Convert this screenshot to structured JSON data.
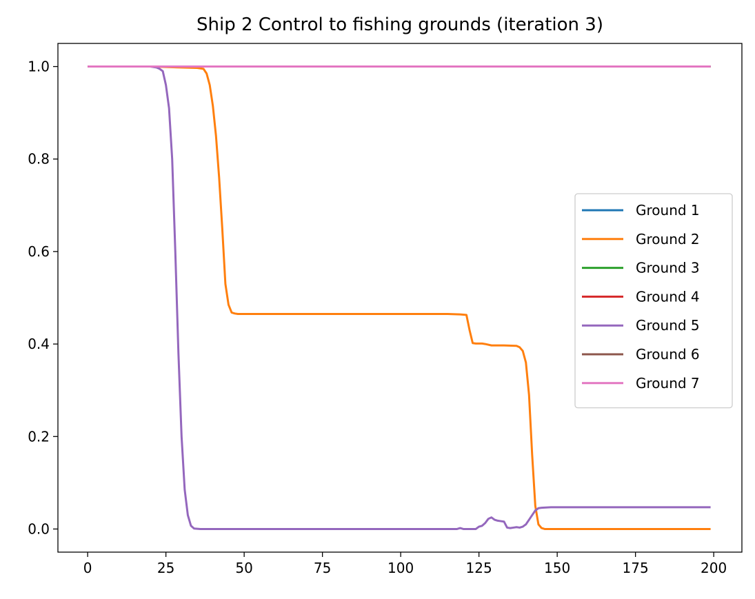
{
  "chart_data": {
    "type": "line",
    "title": "Ship 2 Control to fishing grounds (iteration 3)",
    "xlabel": "",
    "ylabel": "",
    "xlim": [
      -9.5,
      209
    ],
    "ylim": [
      -0.05,
      1.05
    ],
    "xticks": [
      0,
      25,
      50,
      75,
      100,
      125,
      150,
      175,
      200
    ],
    "xtick_labels": [
      "0",
      "25",
      "50",
      "75",
      "100",
      "125",
      "150",
      "175",
      "200"
    ],
    "yticks": [
      0.0,
      0.2,
      0.4,
      0.6,
      0.8,
      1.0
    ],
    "ytick_labels": [
      "0.0",
      "0.2",
      "0.4",
      "0.6",
      "0.8",
      "1.0"
    ],
    "grid": false,
    "legend_position": "center-right",
    "series": [
      {
        "name": "Ground 1",
        "color": "#1f77b4",
        "x": [
          0,
          199
        ],
        "y": [
          1.0,
          1.0
        ]
      },
      {
        "name": "Ground 2",
        "color": "#ff7f0e",
        "x": [
          0,
          20,
          30,
          35,
          37,
          38,
          39,
          40,
          41,
          42,
          43,
          44,
          45,
          46,
          47,
          48,
          49,
          50,
          60,
          80,
          100,
          115,
          119,
          121,
          122,
          123,
          124,
          126,
          127,
          129,
          131,
          133,
          137,
          138,
          139,
          140,
          141,
          142,
          143,
          144,
          145,
          146,
          147,
          150,
          170,
          199
        ],
        "y": [
          1.0,
          1.0,
          0.998,
          0.997,
          0.995,
          0.985,
          0.96,
          0.915,
          0.85,
          0.76,
          0.65,
          0.53,
          0.485,
          0.468,
          0.466,
          0.465,
          0.465,
          0.465,
          0.465,
          0.465,
          0.465,
          0.465,
          0.464,
          0.463,
          0.43,
          0.402,
          0.401,
          0.401,
          0.4,
          0.397,
          0.397,
          0.397,
          0.396,
          0.393,
          0.385,
          0.36,
          0.29,
          0.16,
          0.05,
          0.01,
          0.002,
          0.0,
          0.0,
          0.0,
          0.0,
          0.0
        ]
      },
      {
        "name": "Ground 3",
        "color": "#2ca02c",
        "x": [
          0,
          199
        ],
        "y": [
          1.0,
          1.0
        ]
      },
      {
        "name": "Ground 4",
        "color": "#d62728",
        "x": [
          0,
          199
        ],
        "y": [
          1.0,
          1.0
        ]
      },
      {
        "name": "Ground 5",
        "color": "#9467bd",
        "x": [
          0,
          15,
          20,
          22,
          23,
          24,
          25,
          26,
          27,
          28,
          29,
          30,
          31,
          32,
          33,
          34,
          36,
          50,
          80,
          110,
          117,
          118,
          119,
          120,
          121,
          122,
          123,
          124,
          125,
          126,
          127,
          128,
          129,
          130,
          131,
          132,
          133,
          134,
          135,
          136,
          137,
          138,
          139,
          140,
          141,
          142,
          143,
          144,
          145,
          148,
          160,
          199
        ],
        "y": [
          1.0,
          1.0,
          1.0,
          0.998,
          0.995,
          0.99,
          0.96,
          0.91,
          0.8,
          0.6,
          0.38,
          0.2,
          0.085,
          0.03,
          0.007,
          0.001,
          0.0,
          0.0,
          0.0,
          0.0,
          0.0,
          0.0,
          0.002,
          0.0,
          0.0,
          0.0,
          0.0,
          0.0,
          0.005,
          0.007,
          0.013,
          0.022,
          0.025,
          0.02,
          0.018,
          0.017,
          0.016,
          0.003,
          0.002,
          0.003,
          0.004,
          0.003,
          0.005,
          0.01,
          0.02,
          0.03,
          0.04,
          0.045,
          0.046,
          0.047,
          0.047,
          0.047
        ]
      },
      {
        "name": "Ground 6",
        "color": "#8c564b",
        "x": [
          0,
          199
        ],
        "y": [
          1.0,
          1.0
        ]
      },
      {
        "name": "Ground 7",
        "color": "#e377c2",
        "x": [
          0,
          199
        ],
        "y": [
          1.0,
          1.0
        ]
      }
    ]
  }
}
